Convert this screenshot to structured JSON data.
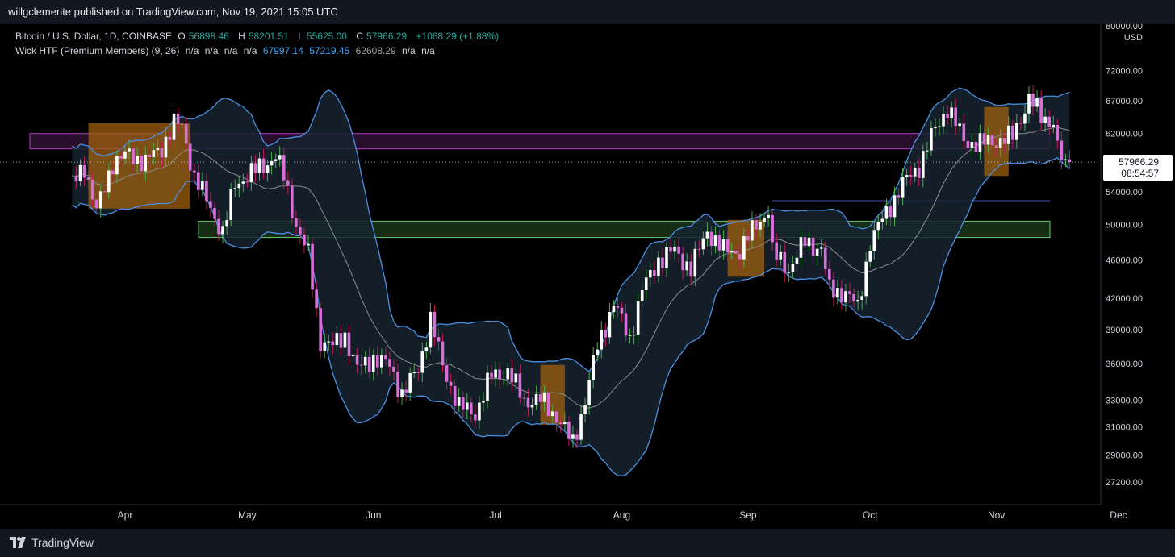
{
  "header": {
    "published": "willgclemente published on TradingView.com, Nov 19, 2021 15:05 UTC"
  },
  "legend": {
    "symbol": "Bitcoin / U.S. Dollar, 1D, COINBASE",
    "o_label": "O",
    "o": "56898.46",
    "h_label": "H",
    "h": "58201.51",
    "l_label": "L",
    "l": "55625.00",
    "c_label": "C",
    "c": "57966.29",
    "change": "+1068.29 (+1.88%)",
    "indicator": "Wick HTF (Premium Members) (9, 26)",
    "na1": "n/a",
    "na2": "n/a",
    "na3": "n/a",
    "na4": "n/a",
    "v1": "67997.14",
    "v2": "57219.45",
    "v3": "62608.29",
    "na5": "n/a",
    "na6": "n/a"
  },
  "footer": {
    "brand": "TradingView"
  },
  "colors": {
    "bull": "#ffffff",
    "bear": "#d66fd6",
    "band": "#4a90e2",
    "basis": "#9e9e9e",
    "purple_zone": "#b040c0",
    "green_zone": "#66cc66",
    "orange": "#a0600f"
  },
  "chart_data": {
    "type": "candlestick",
    "title": "Bitcoin / U.S. Dollar, 1D, COINBASE",
    "y_currency": "USD",
    "y_scale": "log",
    "y_ticks": [
      27200,
      29000,
      31000,
      33000,
      36000,
      39000,
      42000,
      46000,
      50000,
      54000,
      62000,
      67000,
      72000,
      80000
    ],
    "y_tick_labels": [
      "27200.00",
      "29000.00",
      "31000.00",
      "33000.00",
      "36000.00",
      "39000.00",
      "42000.00",
      "46000.00",
      "50000.00",
      "54000.00",
      "62000.00",
      "67000.00",
      "72000.00",
      "80000.00"
    ],
    "x_labels": [
      "Apr",
      "May",
      "Jun",
      "Jul",
      "Aug",
      "Sep",
      "Oct",
      "Nov",
      "Dec"
    ],
    "x_label_dates": [
      "2021-04-01",
      "2021-05-01",
      "2021-06-01",
      "2021-07-01",
      "2021-08-01",
      "2021-09-01",
      "2021-10-01",
      "2021-11-01",
      "2021-12-01"
    ],
    "last_price": "57966.29",
    "countdown": "08:54:57",
    "points": [
      {
        "date": "2021-03-19",
        "close": 55000
      },
      {
        "date": "2021-03-22",
        "close": 57500
      },
      {
        "date": "2021-03-25",
        "close": 51500
      },
      {
        "date": "2021-03-29",
        "close": 58000
      },
      {
        "date": "2021-04-02",
        "close": 59000
      },
      {
        "date": "2021-04-06",
        "close": 58000
      },
      {
        "date": "2021-04-10",
        "close": 60000
      },
      {
        "date": "2021-04-13",
        "close": 63500
      },
      {
        "date": "2021-04-15",
        "close": 63000
      },
      {
        "date": "2021-04-18",
        "close": 56000
      },
      {
        "date": "2021-04-22",
        "close": 52000
      },
      {
        "date": "2021-04-25",
        "close": 49000
      },
      {
        "date": "2021-04-28",
        "close": 55000
      },
      {
        "date": "2021-05-02",
        "close": 56500
      },
      {
        "date": "2021-05-05",
        "close": 57500
      },
      {
        "date": "2021-05-08",
        "close": 58800
      },
      {
        "date": "2021-05-10",
        "close": 56000
      },
      {
        "date": "2021-05-13",
        "close": 50000
      },
      {
        "date": "2021-05-16",
        "close": 46500
      },
      {
        "date": "2021-05-19",
        "close": 38000
      },
      {
        "date": "2021-05-22",
        "close": 37500
      },
      {
        "date": "2021-05-25",
        "close": 38500
      },
      {
        "date": "2021-05-28",
        "close": 35500
      },
      {
        "date": "2021-06-01",
        "close": 36500
      },
      {
        "date": "2021-06-05",
        "close": 35800
      },
      {
        "date": "2021-06-08",
        "close": 33500
      },
      {
        "date": "2021-06-12",
        "close": 35500
      },
      {
        "date": "2021-06-15",
        "close": 40000
      },
      {
        "date": "2021-06-18",
        "close": 35800
      },
      {
        "date": "2021-06-22",
        "close": 32500
      },
      {
        "date": "2021-06-26",
        "close": 32000
      },
      {
        "date": "2021-06-30",
        "close": 35000
      },
      {
        "date": "2021-07-04",
        "close": 35300
      },
      {
        "date": "2021-07-08",
        "close": 33000
      },
      {
        "date": "2021-07-12",
        "close": 33000
      },
      {
        "date": "2021-07-16",
        "close": 31800
      },
      {
        "date": "2021-07-20",
        "close": 29800
      },
      {
        "date": "2021-07-23",
        "close": 33000
      },
      {
        "date": "2021-07-26",
        "close": 37500
      },
      {
        "date": "2021-07-30",
        "close": 41500
      },
      {
        "date": "2021-08-03",
        "close": 38200
      },
      {
        "date": "2021-08-06",
        "close": 42800
      },
      {
        "date": "2021-08-10",
        "close": 46000
      },
      {
        "date": "2021-08-14",
        "close": 47000
      },
      {
        "date": "2021-08-18",
        "close": 45000
      },
      {
        "date": "2021-08-22",
        "close": 49300
      },
      {
        "date": "2021-08-26",
        "close": 47000
      },
      {
        "date": "2021-08-30",
        "close": 47000
      },
      {
        "date": "2021-09-03",
        "close": 50000
      },
      {
        "date": "2021-09-06",
        "close": 51800
      },
      {
        "date": "2021-09-07",
        "close": 46800
      },
      {
        "date": "2021-09-11",
        "close": 45000
      },
      {
        "date": "2021-09-15",
        "close": 48000
      },
      {
        "date": "2021-09-19",
        "close": 47200
      },
      {
        "date": "2021-09-21",
        "close": 42800
      },
      {
        "date": "2021-09-25",
        "close": 42600
      },
      {
        "date": "2021-09-28",
        "close": 41000
      },
      {
        "date": "2021-10-01",
        "close": 48000
      },
      {
        "date": "2021-10-05",
        "close": 51500
      },
      {
        "date": "2021-10-09",
        "close": 55000
      },
      {
        "date": "2021-10-13",
        "close": 57500
      },
      {
        "date": "2021-10-16",
        "close": 61500
      },
      {
        "date": "2021-10-20",
        "close": 66000
      },
      {
        "date": "2021-10-24",
        "close": 61000
      },
      {
        "date": "2021-10-28",
        "close": 60500
      },
      {
        "date": "2021-11-01",
        "close": 61000
      },
      {
        "date": "2021-11-05",
        "close": 61500
      },
      {
        "date": "2021-11-09",
        "close": 67500
      },
      {
        "date": "2021-11-12",
        "close": 64500
      },
      {
        "date": "2021-11-15",
        "close": 63800
      },
      {
        "date": "2021-11-16",
        "close": 60000
      },
      {
        "date": "2021-11-18",
        "close": 56900
      },
      {
        "date": "2021-11-19",
        "close": 57966
      }
    ],
    "zones": [
      {
        "kind": "resistance",
        "from": "2021-03-01",
        "to": "2021-11-19",
        "low": 59800,
        "high": 62000
      },
      {
        "kind": "support",
        "from": "2021-04-20",
        "to": "2021-11-19",
        "low": 48500,
        "high": 50400
      },
      {
        "kind": "level",
        "from": "2021-09-07",
        "to": "2021-11-19",
        "value": 52900
      }
    ]
  }
}
